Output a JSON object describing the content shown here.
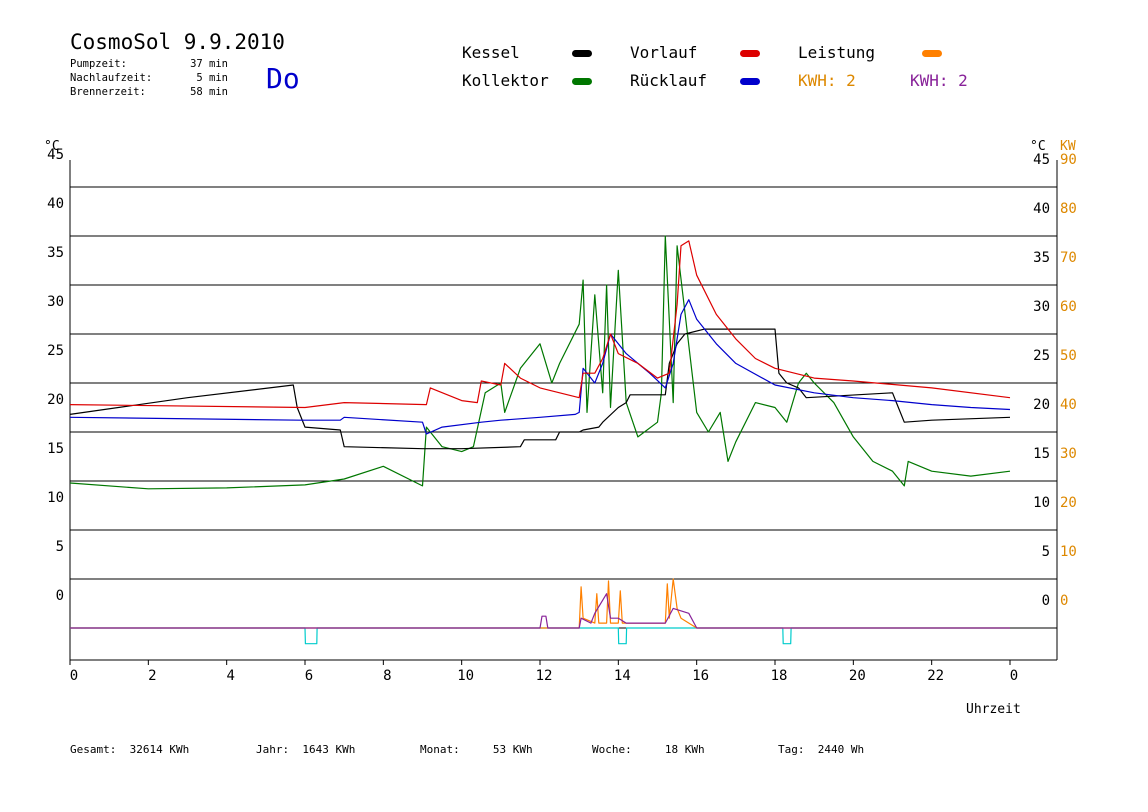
{
  "header": {
    "title": "CosmoSol 9.9.2010",
    "day": "Do",
    "info": [
      {
        "label": "Pumpzeit:",
        "value": "37 min"
      },
      {
        "label": "Nachlaufzeit:",
        "value": "5 min"
      },
      {
        "label": "Brennerzeit:",
        "value": "58 min"
      }
    ]
  },
  "legend": {
    "kessel": "Kessel",
    "vorlauf": "Vorlauf",
    "leistung": "Leistung",
    "kollektor": "Kollektor",
    "ruecklauf": "Rücklauf",
    "kwh1": "KWH: 2",
    "kwh2": "KWH: 2"
  },
  "colors": {
    "kessel": "#000000",
    "vorlauf": "#dd0000",
    "leistung": "#ff8000",
    "kollektor": "#007700",
    "ruecklauf": "#0000cc",
    "kwh1": "#dd8800",
    "kwh2": "#882299",
    "pump": "#00cccc",
    "grid": "#000000"
  },
  "axes": {
    "left_unit": "°C",
    "right_unit": "°C",
    "right_unit2": "KW",
    "xlabel": "Uhrzeit"
  },
  "footer": [
    {
      "label": "Gesamt:",
      "value": "32614 KWh"
    },
    {
      "label": "Jahr:",
      "value": "1643 KWh"
    },
    {
      "label": "Monat:",
      "value": "53 KWh"
    },
    {
      "label": "Woche:",
      "value": "18 KWh"
    },
    {
      "label": "Tag:",
      "value": "2440 Wh"
    }
  ],
  "chart_data": {
    "type": "line",
    "x_ticks": [
      "0",
      "2",
      "4",
      "6",
      "8",
      "10",
      "12",
      "14",
      "16",
      "18",
      "20",
      "22",
      "0"
    ],
    "xlim": [
      0,
      24
    ],
    "ylim": [
      0,
      45
    ],
    "y_ticks": [
      0,
      5,
      10,
      15,
      20,
      25,
      30,
      35,
      40,
      45
    ],
    "y2_ticks": [
      0,
      10,
      20,
      30,
      40,
      50,
      60,
      70,
      80,
      90
    ],
    "grid": "horizontal",
    "series": [
      {
        "name": "Kessel",
        "points": [
          [
            0,
            21.8
          ],
          [
            3,
            23.5
          ],
          [
            5.7,
            24.8
          ],
          [
            5.8,
            22.5
          ],
          [
            6,
            20.5
          ],
          [
            6.9,
            20.2
          ],
          [
            7,
            18.5
          ],
          [
            9,
            18.3
          ],
          [
            10,
            18.3
          ],
          [
            11.5,
            18.5
          ],
          [
            11.6,
            19.2
          ],
          [
            12.4,
            19.2
          ],
          [
            12.5,
            20
          ],
          [
            13,
            20
          ],
          [
            13.1,
            20.2
          ],
          [
            13.5,
            20.5
          ],
          [
            13.6,
            21
          ],
          [
            14,
            22.5
          ],
          [
            14.2,
            23
          ],
          [
            14.3,
            23.8
          ],
          [
            15.2,
            23.8
          ],
          [
            15.3,
            27
          ],
          [
            15.5,
            29
          ],
          [
            15.7,
            30
          ],
          [
            16.2,
            30.5
          ],
          [
            18,
            30.5
          ],
          [
            18.1,
            26
          ],
          [
            18.3,
            25
          ],
          [
            18.6,
            24.5
          ],
          [
            18.8,
            23.5
          ],
          [
            21,
            24
          ],
          [
            21.1,
            23
          ],
          [
            21.3,
            21
          ],
          [
            22,
            21.2
          ],
          [
            24,
            21.5
          ]
        ]
      },
      {
        "name": "Vorlauf",
        "points": [
          [
            0,
            22.8
          ],
          [
            6,
            22.5
          ],
          [
            7,
            23
          ],
          [
            9.1,
            22.8
          ],
          [
            9.2,
            24.5
          ],
          [
            10,
            23.2
          ],
          [
            10.4,
            23
          ],
          [
            10.5,
            25.2
          ],
          [
            11,
            24.8
          ],
          [
            11.1,
            27
          ],
          [
            11.5,
            25.5
          ],
          [
            12,
            24.5
          ],
          [
            13,
            23.5
          ],
          [
            13.1,
            26
          ],
          [
            13.4,
            26
          ],
          [
            13.6,
            27.5
          ],
          [
            13.8,
            30
          ],
          [
            14,
            28
          ],
          [
            14.5,
            27
          ],
          [
            15,
            25.5
          ],
          [
            15.3,
            26
          ],
          [
            15.5,
            33
          ],
          [
            15.6,
            39
          ],
          [
            15.8,
            39.5
          ],
          [
            16,
            36
          ],
          [
            16.5,
            32
          ],
          [
            17,
            29.5
          ],
          [
            17.5,
            27.5
          ],
          [
            18,
            26.5
          ],
          [
            19,
            25.5
          ],
          [
            20,
            25.2
          ],
          [
            22,
            24.5
          ],
          [
            24,
            23.5
          ]
        ]
      },
      {
        "name": "Rücklauf",
        "points": [
          [
            0,
            21.5
          ],
          [
            5.9,
            21.2
          ],
          [
            6,
            21.2
          ],
          [
            6.9,
            21.2
          ],
          [
            7,
            21.5
          ],
          [
            9,
            21
          ],
          [
            9.1,
            19.8
          ],
          [
            9.5,
            20.5
          ],
          [
            10.5,
            21
          ],
          [
            11,
            21.2
          ],
          [
            12,
            21.5
          ],
          [
            12.9,
            21.8
          ],
          [
            13,
            22
          ],
          [
            13.1,
            26.5
          ],
          [
            13.4,
            25
          ],
          [
            13.6,
            27
          ],
          [
            13.8,
            30
          ],
          [
            14.2,
            28
          ],
          [
            14.8,
            26
          ],
          [
            15.2,
            24.5
          ],
          [
            15.4,
            27
          ],
          [
            15.6,
            32
          ],
          [
            15.8,
            33.5
          ],
          [
            16,
            31.5
          ],
          [
            16.5,
            29
          ],
          [
            17,
            27
          ],
          [
            18,
            24.8
          ],
          [
            19,
            24
          ],
          [
            20,
            23.5
          ],
          [
            21,
            23.2
          ],
          [
            22,
            22.8
          ],
          [
            23,
            22.5
          ],
          [
            24,
            22.3
          ]
        ]
      },
      {
        "name": "Kollektor",
        "points": [
          [
            0,
            14.8
          ],
          [
            2,
            14.2
          ],
          [
            4,
            14.3
          ],
          [
            6,
            14.6
          ],
          [
            7,
            15.2
          ],
          [
            8,
            16.5
          ],
          [
            9,
            14.5
          ],
          [
            9.1,
            20.5
          ],
          [
            9.5,
            18.5
          ],
          [
            10,
            18
          ],
          [
            10.3,
            18.5
          ],
          [
            10.6,
            24
          ],
          [
            11,
            25
          ],
          [
            11.1,
            22
          ],
          [
            11.5,
            26.5
          ],
          [
            12,
            29
          ],
          [
            12.3,
            25
          ],
          [
            12.5,
            27
          ],
          [
            13,
            31
          ],
          [
            13.1,
            35.5
          ],
          [
            13.2,
            22
          ],
          [
            13.4,
            34
          ],
          [
            13.6,
            24
          ],
          [
            13.7,
            35
          ],
          [
            13.8,
            22.5
          ],
          [
            14,
            36.5
          ],
          [
            14.2,
            23
          ],
          [
            14.5,
            19.5
          ],
          [
            15,
            21
          ],
          [
            15.1,
            24
          ],
          [
            15.2,
            40
          ],
          [
            15.4,
            23
          ],
          [
            15.5,
            39
          ],
          [
            16,
            22
          ],
          [
            16.3,
            20
          ],
          [
            16.6,
            22
          ],
          [
            16.8,
            17
          ],
          [
            17,
            19
          ],
          [
            17.5,
            23
          ],
          [
            18,
            22.5
          ],
          [
            18.3,
            21
          ],
          [
            18.6,
            25
          ],
          [
            18.8,
            26
          ],
          [
            19,
            25
          ],
          [
            19.5,
            23
          ],
          [
            20,
            19.5
          ],
          [
            20.5,
            17
          ],
          [
            21,
            16
          ],
          [
            21.3,
            14.5
          ],
          [
            21.4,
            17
          ],
          [
            22,
            16
          ],
          [
            23,
            15.5
          ],
          [
            24,
            16
          ]
        ]
      },
      {
        "name": "Leistung",
        "points": [
          [
            0,
            0
          ],
          [
            13.0,
            0
          ],
          [
            13.05,
            4.2
          ],
          [
            13.1,
            1
          ],
          [
            13.4,
            0.5
          ],
          [
            13.45,
            3.5
          ],
          [
            13.5,
            0.5
          ],
          [
            13.7,
            0.5
          ],
          [
            13.75,
            4.8
          ],
          [
            13.8,
            0.5
          ],
          [
            14.0,
            0.5
          ],
          [
            14.05,
            3.8
          ],
          [
            14.1,
            0.5
          ],
          [
            15.2,
            0.5
          ],
          [
            15.25,
            4.5
          ],
          [
            15.3,
            1
          ],
          [
            15.4,
            5
          ],
          [
            15.5,
            2
          ],
          [
            15.6,
            1
          ],
          [
            16,
            0
          ],
          [
            24,
            0
          ]
        ]
      },
      {
        "name": "KWH: 2",
        "points": [
          [
            0,
            0
          ],
          [
            12.0,
            0
          ],
          [
            12.05,
            1.2
          ],
          [
            12.15,
            1.2
          ],
          [
            12.2,
            0
          ],
          [
            13.0,
            0
          ],
          [
            13.05,
            1
          ],
          [
            13.3,
            0.5
          ],
          [
            13.4,
            1.5
          ],
          [
            13.7,
            3.5
          ],
          [
            13.8,
            1
          ],
          [
            14.0,
            1
          ],
          [
            14.2,
            0.5
          ],
          [
            15.2,
            0.5
          ],
          [
            15.4,
            2
          ],
          [
            15.8,
            1.5
          ],
          [
            16.0,
            0
          ],
          [
            24,
            0
          ]
        ]
      },
      {
        "name": "Pumpe",
        "points": [
          [
            0,
            0
          ],
          [
            6,
            0
          ],
          [
            6.01,
            -1.6
          ],
          [
            6.3,
            -1.6
          ],
          [
            6.31,
            0
          ],
          [
            14.0,
            0
          ],
          [
            14.01,
            -1.6
          ],
          [
            14.2,
            -1.6
          ],
          [
            14.21,
            0
          ],
          [
            18.2,
            0
          ],
          [
            18.21,
            -1.6
          ],
          [
            18.4,
            -1.6
          ],
          [
            18.41,
            0
          ],
          [
            24,
            0
          ]
        ]
      }
    ]
  }
}
